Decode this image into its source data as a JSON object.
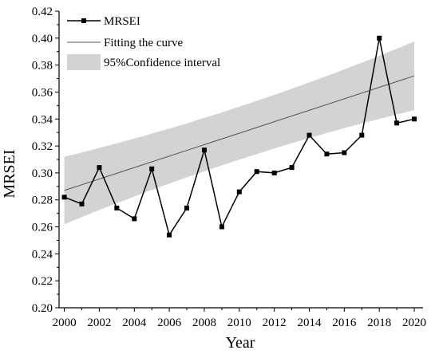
{
  "chart_data": {
    "type": "line",
    "title": "",
    "xlabel": "Year",
    "ylabel": "MRSEI",
    "xlim": [
      1999.7,
      2020.5
    ],
    "ylim": [
      0.2,
      0.42
    ],
    "x_ticks": [
      2000,
      2002,
      2004,
      2006,
      2008,
      2010,
      2012,
      2014,
      2016,
      2018,
      2020
    ],
    "y_ticks": [
      0.2,
      0.22,
      0.24,
      0.26,
      0.28,
      0.3,
      0.32,
      0.34,
      0.36,
      0.38,
      0.4,
      0.42
    ],
    "x_tick_labels": [
      "2000",
      "2002",
      "2004",
      "2006",
      "2008",
      "2010",
      "2012",
      "2014",
      "2016",
      "2018",
      "2020"
    ],
    "y_tick_labels": [
      "0.20",
      "0.22",
      "0.24",
      "0.26",
      "0.28",
      "0.30",
      "0.32",
      "0.34",
      "0.36",
      "0.38",
      "0.40",
      "0.42"
    ],
    "grid": false,
    "legend_position": "top-left",
    "series": [
      {
        "name": "MRSEI",
        "kind": "line-with-square-markers",
        "color": "#000000",
        "x": [
          2000,
          2001,
          2002,
          2003,
          2004,
          2005,
          2006,
          2007,
          2008,
          2009,
          2010,
          2011,
          2012,
          2013,
          2014,
          2015,
          2016,
          2017,
          2018,
          2019,
          2020
        ],
        "values": [
          0.282,
          0.277,
          0.304,
          0.274,
          0.266,
          0.303,
          0.254,
          0.274,
          0.317,
          0.26,
          0.286,
          0.301,
          0.3,
          0.304,
          0.328,
          0.314,
          0.315,
          0.328,
          0.4,
          0.337,
          0.34
        ]
      },
      {
        "name": "Fitting the curve",
        "kind": "line",
        "color": "#555555",
        "x": [
          2000,
          2020
        ],
        "values": [
          0.287,
          0.372
        ]
      },
      {
        "name": "95%Confidence interval",
        "kind": "band",
        "color": "#d3d3d3",
        "x": [
          2000,
          2020
        ],
        "lower": [
          0.262,
          0.347
        ],
        "upper": [
          0.312,
          0.398
        ]
      }
    ]
  }
}
